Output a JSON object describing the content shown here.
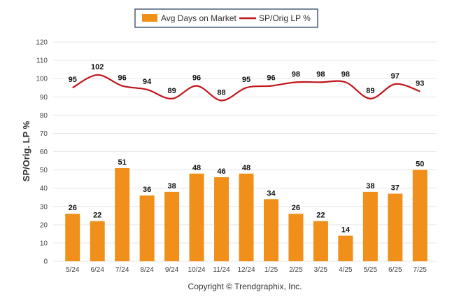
{
  "chart_data": {
    "type": "bar",
    "categories": [
      "5/24",
      "6/24",
      "7/24",
      "8/24",
      "9/24",
      "10/24",
      "11/24",
      "12/24",
      "1/25",
      "2/25",
      "3/25",
      "4/25",
      "5/25",
      "6/25",
      "7/25"
    ],
    "series": [
      {
        "name": "Avg Days on Market",
        "type": "bar",
        "color": "#f0901a",
        "values": [
          26,
          22,
          51,
          36,
          38,
          48,
          46,
          48,
          34,
          26,
          22,
          14,
          38,
          37,
          50
        ]
      },
      {
        "name": "SP/Orig LP %",
        "type": "line",
        "color": "#c0161c",
        "values": [
          95,
          102,
          96,
          94,
          89,
          96,
          88,
          95,
          96,
          98,
          98,
          98,
          89,
          97,
          93
        ]
      }
    ],
    "ylabel": "SP/Orig. LP %",
    "xlabel": "",
    "ylim": [
      0,
      120
    ],
    "yticks": [
      0,
      10,
      20,
      30,
      40,
      50,
      60,
      70,
      80,
      90,
      100,
      110,
      120
    ],
    "grid": true,
    "legend_position": "top-center"
  },
  "footer": {
    "copyright": "Copyright © Trendgraphix, Inc."
  }
}
